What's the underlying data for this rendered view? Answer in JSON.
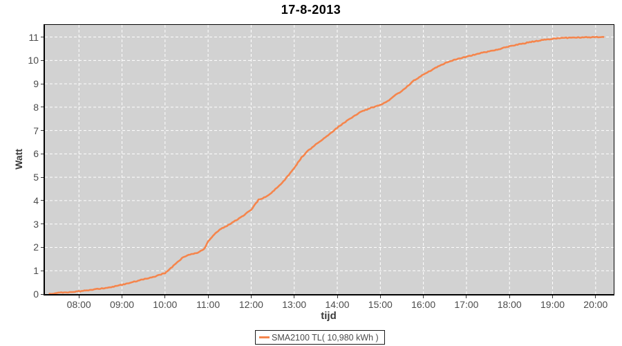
{
  "page": {
    "background": "#ffffff"
  },
  "chart_data": {
    "type": "line",
    "title": "17-8-2013",
    "xlabel": "tijd",
    "ylabel": "Watt",
    "plot_background": "#d2d2d2",
    "grid": true,
    "grid_color": "#ffffff",
    "axis_color": "#000000",
    "tick_label_color": "#4b4b4b",
    "legend_position": "bottom-center",
    "x_axis": {
      "label": "tijd",
      "tick_hours": [
        8,
        9,
        10,
        11,
        12,
        13,
        14,
        15,
        16,
        17,
        18,
        19,
        20
      ],
      "tick_labels": [
        "08:00",
        "09:00",
        "10:00",
        "11:00",
        "12:00",
        "13:00",
        "14:00",
        "15:00",
        "16:00",
        "17:00",
        "18:00",
        "19:00",
        "20:00"
      ],
      "range_hours": [
        7.21,
        20.42
      ]
    },
    "y_axis": {
      "label": "Watt",
      "ticks": [
        0,
        1,
        2,
        3,
        4,
        5,
        6,
        7,
        8,
        9,
        10,
        11
      ],
      "range": [
        0,
        11.52
      ]
    },
    "series": [
      {
        "name": "SMA2100 TL( 10,980 kWh )",
        "color": "#f5854c",
        "points_time_hours_vs_value": [
          [
            7.3,
            0.0
          ],
          [
            7.5,
            0.05
          ],
          [
            7.75,
            0.08
          ],
          [
            8.0,
            0.12
          ],
          [
            8.25,
            0.17
          ],
          [
            8.5,
            0.23
          ],
          [
            8.75,
            0.3
          ],
          [
            9.0,
            0.4
          ],
          [
            9.25,
            0.52
          ],
          [
            9.5,
            0.63
          ],
          [
            9.75,
            0.75
          ],
          [
            10.0,
            0.9
          ],
          [
            10.08,
            1.02
          ],
          [
            10.25,
            1.3
          ],
          [
            10.42,
            1.58
          ],
          [
            10.58,
            1.7
          ],
          [
            10.75,
            1.76
          ],
          [
            10.92,
            1.95
          ],
          [
            11.0,
            2.25
          ],
          [
            11.17,
            2.6
          ],
          [
            11.3,
            2.8
          ],
          [
            11.5,
            2.98
          ],
          [
            11.75,
            3.28
          ],
          [
            12.0,
            3.6
          ],
          [
            12.17,
            4.03
          ],
          [
            12.33,
            4.15
          ],
          [
            12.5,
            4.38
          ],
          [
            12.75,
            4.82
          ],
          [
            13.0,
            5.4
          ],
          [
            13.17,
            5.85
          ],
          [
            13.33,
            6.15
          ],
          [
            13.5,
            6.4
          ],
          [
            13.75,
            6.75
          ],
          [
            14.0,
            7.12
          ],
          [
            14.25,
            7.45
          ],
          [
            14.5,
            7.75
          ],
          [
            14.75,
            7.95
          ],
          [
            15.0,
            8.1
          ],
          [
            15.17,
            8.25
          ],
          [
            15.33,
            8.5
          ],
          [
            15.5,
            8.68
          ],
          [
            15.75,
            9.1
          ],
          [
            16.0,
            9.4
          ],
          [
            16.25,
            9.65
          ],
          [
            16.5,
            9.88
          ],
          [
            16.67,
            10.0
          ],
          [
            16.83,
            10.08
          ],
          [
            17.0,
            10.16
          ],
          [
            17.25,
            10.28
          ],
          [
            17.5,
            10.38
          ],
          [
            17.75,
            10.48
          ],
          [
            18.0,
            10.6
          ],
          [
            18.25,
            10.7
          ],
          [
            18.5,
            10.79
          ],
          [
            18.75,
            10.87
          ],
          [
            19.0,
            10.93
          ],
          [
            19.25,
            10.96
          ],
          [
            19.5,
            10.98
          ],
          [
            19.75,
            10.99
          ],
          [
            20.0,
            11.0
          ],
          [
            20.2,
            11.0
          ]
        ]
      }
    ]
  }
}
